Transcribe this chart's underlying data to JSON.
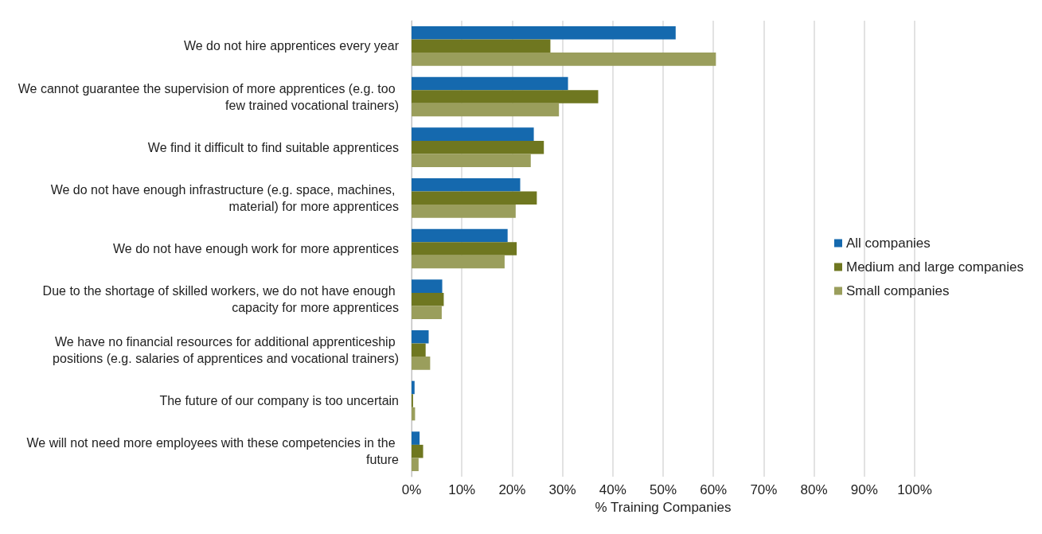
{
  "chart_data": {
    "type": "bar",
    "orientation": "horizontal",
    "xlabel": "% Training Companies",
    "categories": [
      "We do not hire apprentices every year",
      "We cannot guarantee the supervision of more apprentices (e.g. too few trained vocational trainers)",
      "We find it difficult to find suitable apprentices",
      "We do not have enough infrastructure (e.g. space, machines, material) for more apprentices",
      "We do not have enough work for more apprentices",
      "Due to the shortage of skilled workers, we do not have enough capacity for more apprentices",
      "We have no financial resources for additional apprenticeship positions (e.g. salaries of apprentices and vocational trainers)",
      "The future of our company is too uncertain",
      "We will not need more employees with these competencies in the future"
    ],
    "series": [
      {
        "name": "All companies",
        "color": "#1569ae",
        "values": [
          52.5,
          31.1,
          24.3,
          21.6,
          19.1,
          6.1,
          3.4,
          0.6,
          1.6
        ]
      },
      {
        "name": "Medium and large companies",
        "color": "#6f7720",
        "values": [
          27.6,
          37.1,
          26.3,
          24.9,
          20.9,
          6.4,
          2.8,
          0.3,
          2.3
        ]
      },
      {
        "name": "Small companies",
        "color": "#9a9e5c",
        "values": [
          60.5,
          29.3,
          23.7,
          20.7,
          18.5,
          6.0,
          3.7,
          0.7,
          1.4
        ]
      }
    ],
    "xlim": [
      0,
      100
    ],
    "xticks": [
      {
        "value": 0,
        "label": "0%"
      },
      {
        "value": 10,
        "label": "10%"
      },
      {
        "value": 20,
        "label": "20%"
      },
      {
        "value": 30,
        "label": "30%"
      },
      {
        "value": 40,
        "label": "40%"
      },
      {
        "value": 50,
        "label": "50%"
      },
      {
        "value": 60,
        "label": "60%"
      },
      {
        "value": 70,
        "label": "70%"
      },
      {
        "value": 80,
        "label": "80%"
      },
      {
        "value": 90,
        "label": "90%"
      },
      {
        "value": 100,
        "label": "100%"
      }
    ],
    "grid": "x",
    "legend": "right"
  }
}
